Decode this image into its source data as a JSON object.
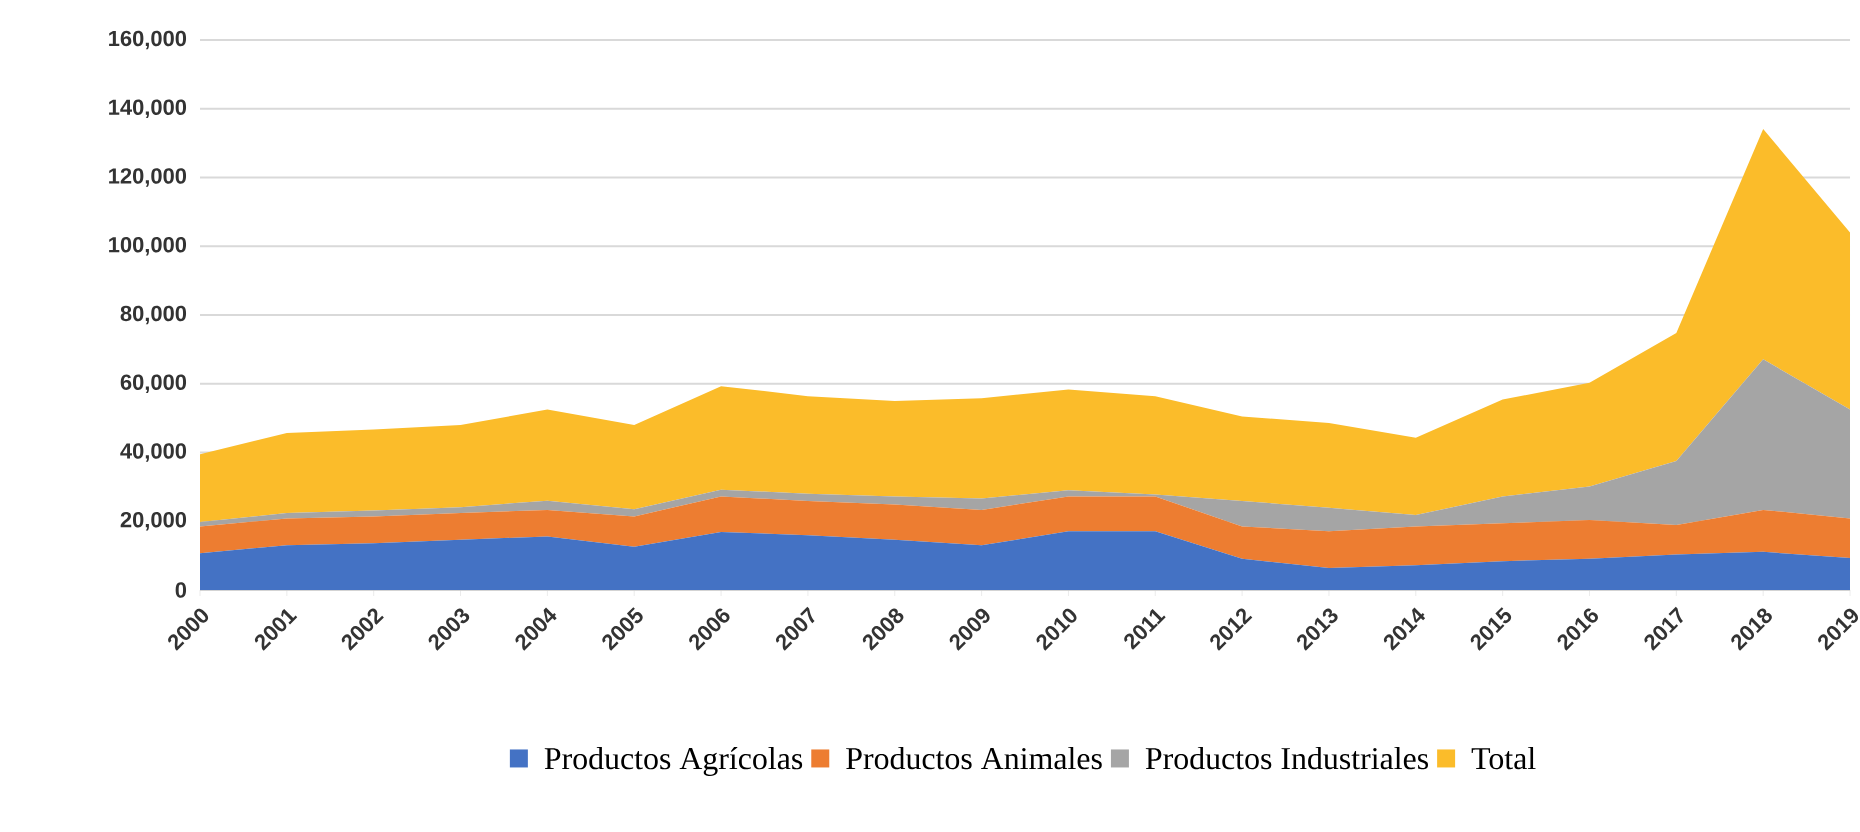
{
  "chart_data": {
    "type": "area",
    "stacked": true,
    "categories": [
      "2000",
      "2001",
      "2002",
      "2003",
      "2004",
      "2005",
      "2006",
      "2007",
      "2008",
      "2009",
      "2010",
      "2011",
      "2012",
      "2013",
      "2014",
      "2015",
      "2016",
      "2017",
      "2018",
      "2019"
    ],
    "series": [
      {
        "name": "Productos Agrícolas",
        "color": "#4472c4",
        "values": [
          10700,
          13000,
          13600,
          14600,
          15600,
          12600,
          16900,
          15900,
          14600,
          13000,
          17100,
          17100,
          9100,
          6400,
          7200,
          8400,
          9100,
          10300,
          11100,
          9300
        ]
      },
      {
        "name": "Productos Animales",
        "color": "#ed7d31",
        "values": [
          7800,
          7800,
          7800,
          7800,
          7700,
          8800,
          10300,
          10000,
          10300,
          10300,
          10100,
          10100,
          9400,
          10700,
          11300,
          11000,
          11300,
          8600,
          12200,
          11500
        ]
      },
      {
        "name": "Productos Industriales",
        "color": "#a5a5a5",
        "values": [
          1300,
          1600,
          1700,
          1700,
          2700,
          2100,
          2000,
          2100,
          2300,
          3300,
          1800,
          600,
          7400,
          6800,
          3300,
          7800,
          9700,
          18600,
          43800,
          31700
        ]
      },
      {
        "name": "Total",
        "color": "#fbbc2a",
        "values": [
          19700,
          23300,
          23600,
          23900,
          26500,
          24500,
          30100,
          28400,
          27800,
          29200,
          29300,
          28600,
          24600,
          24700,
          22500,
          28200,
          30200,
          37300,
          67000,
          51500
        ]
      }
    ],
    "ylim": [
      0,
      160000
    ],
    "yticks": [
      0,
      {
        "value": 20000,
        "label": "20,000"
      },
      {
        "value": 40000,
        "label": "40,000"
      },
      {
        "value": 60000,
        "label": "60,000"
      },
      {
        "value": 80000,
        "label": "80,000"
      },
      {
        "value": 100000,
        "label": "100,000"
      },
      {
        "value": 120000,
        "label": "120,000"
      },
      {
        "value": 140000,
        "label": "140,000"
      },
      {
        "value": 160000,
        "label": "160,000"
      }
    ],
    "grid": "y",
    "legend": "bottom"
  }
}
